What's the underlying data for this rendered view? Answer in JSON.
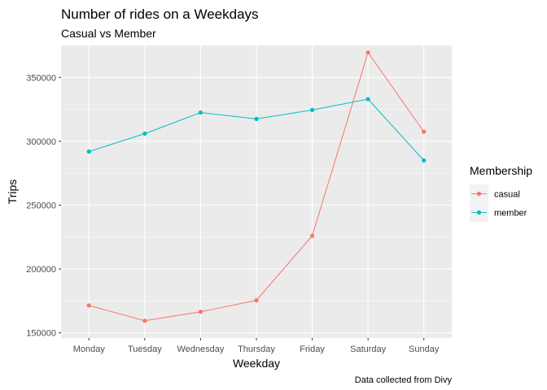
{
  "chart_data": {
    "type": "line",
    "title": "Number of rides on a Weekdays",
    "subtitle": "Casual vs Member",
    "xlabel": "Weekday",
    "ylabel": "Trips",
    "caption": "Data collected from Divy",
    "categories": [
      "Monday",
      "Tuesday",
      "Wednesday",
      "Thursday",
      "Friday",
      "Saturday",
      "Sunday"
    ],
    "series": [
      {
        "name": "casual",
        "color": "#F8766D",
        "values": [
          171500,
          159500,
          166500,
          175500,
          226000,
          369500,
          307500
        ]
      },
      {
        "name": "member",
        "color": "#00BFC4",
        "values": [
          292000,
          306000,
          322500,
          317500,
          324500,
          333000,
          285000
        ]
      }
    ],
    "ylim": [
      146000,
      375000
    ],
    "yticks": [
      150000,
      200000,
      250000,
      300000,
      350000
    ],
    "ytick_labels": [
      "150000",
      "200000",
      "250000",
      "300000",
      "350000"
    ],
    "grid": true,
    "panel_background": "#EBEBEB",
    "grid_color": "#FFFFFF",
    "legend": {
      "title": "Membership",
      "position": "right",
      "entries": [
        "casual",
        "member"
      ]
    }
  }
}
